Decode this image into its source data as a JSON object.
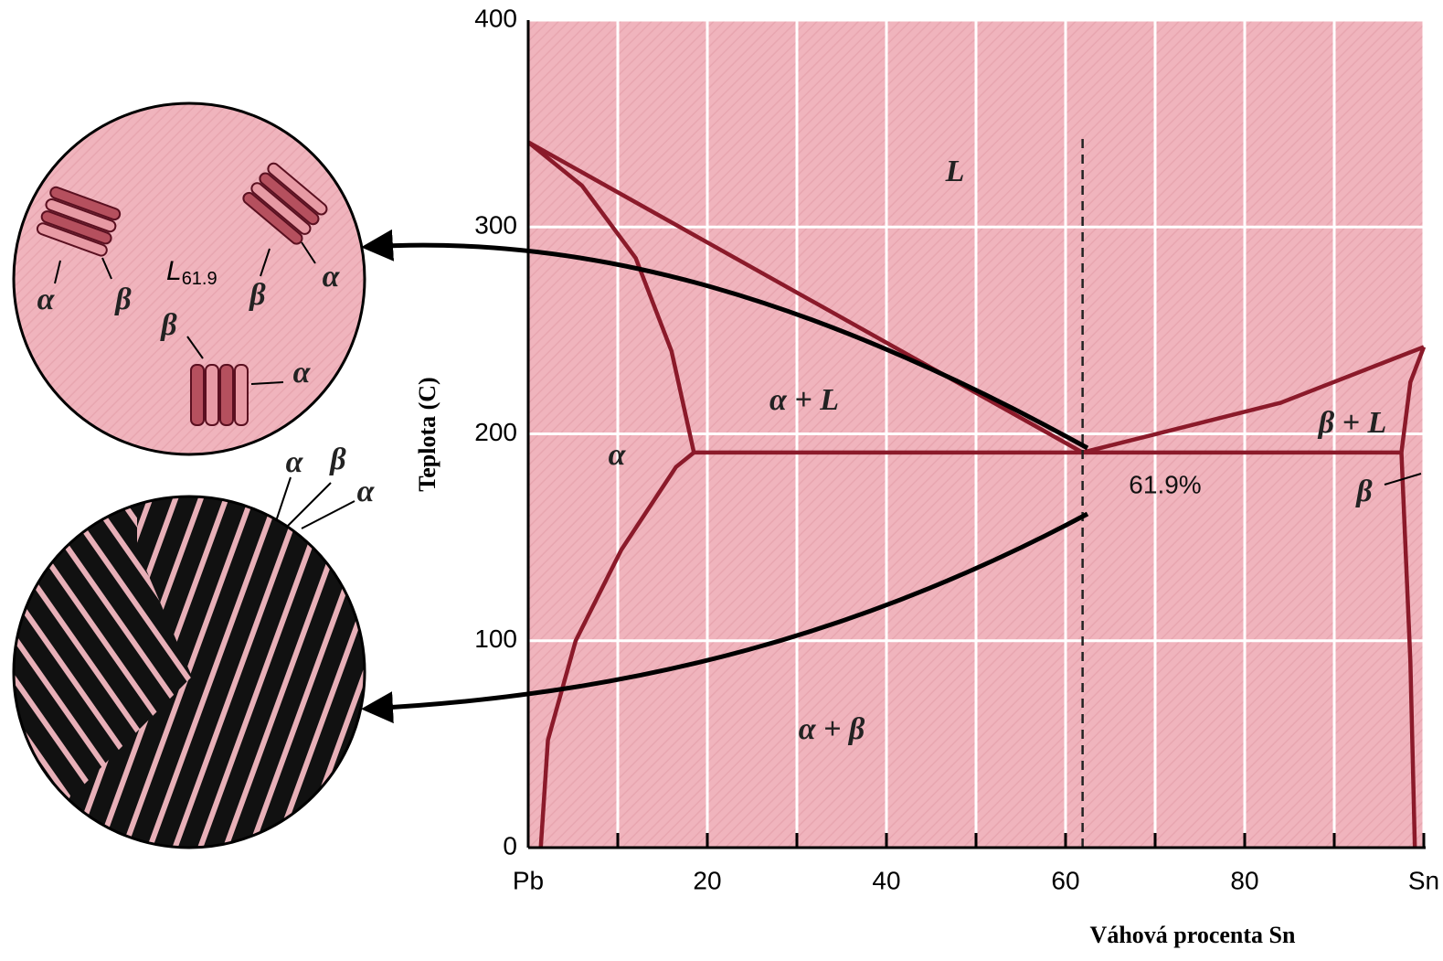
{
  "chart_data": {
    "type": "line",
    "xlabel": "Váhová procenta Sn",
    "ylabel": "Teplota (C)",
    "xlim": [
      0,
      100
    ],
    "ylim": [
      0,
      400
    ],
    "xticks": [
      {
        "value": 0,
        "label": "Pb"
      },
      20,
      40,
      60,
      80,
      {
        "value": 100,
        "label": "Sn"
      }
    ],
    "xminorticks": [
      10,
      30,
      50,
      70,
      90
    ],
    "yticks": [
      0,
      100,
      200,
      300,
      400
    ],
    "grid": true,
    "series": [
      {
        "color": "#8b1a2a",
        "x": [
          0,
          61.9
        ],
        "values": [
          341,
          191
        ]
      },
      {
        "color": "#8b1a2a",
        "x": [
          0,
          6,
          12,
          16,
          18.5
        ],
        "values": [
          341,
          320,
          285,
          240,
          191
        ]
      },
      {
        "color": "#8b1a2a",
        "x": [
          18.5,
          16.5,
          10.4,
          5.3,
          2.2,
          1.4
        ],
        "values": [
          191,
          184,
          144,
          100,
          52,
          0
        ]
      },
      {
        "color": "#8b1a2a",
        "x": [
          18.5,
          97.5
        ],
        "values": [
          191,
          191
        ]
      },
      {
        "color": "#8b1a2a",
        "x": [
          61.9,
          84,
          100
        ],
        "values": [
          191,
          215,
          242
        ]
      },
      {
        "color": "#8b1a2a",
        "x": [
          97.5,
          98.5,
          100
        ],
        "values": [
          191,
          225,
          242
        ]
      },
      {
        "color": "#8b1a2a",
        "x": [
          97.5,
          98.5,
          99
        ],
        "values": [
          191,
          90,
          0
        ]
      },
      {
        "color": "#222222",
        "dash": true,
        "x": [
          61.9,
          61.9
        ],
        "values": [
          0,
          345
        ]
      }
    ],
    "annotations": [
      "L",
      "α + L",
      "α",
      "β + L",
      "61.9%",
      "β",
      "α + β"
    ]
  },
  "insets": {
    "top_circle": {
      "main": "L",
      "sub": "61.9",
      "labels": [
        "α",
        "β",
        "β",
        "α",
        "β",
        "α"
      ]
    },
    "bottom_circle": {
      "labels": [
        "α",
        "β",
        "α"
      ]
    }
  }
}
